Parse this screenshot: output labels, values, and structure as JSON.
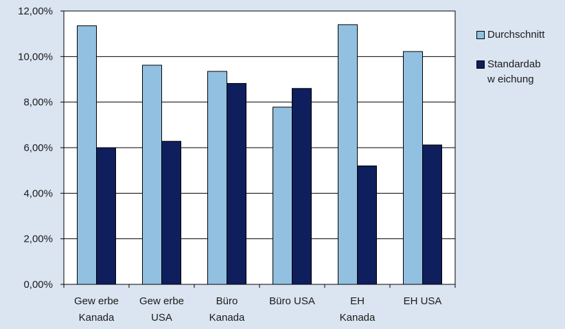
{
  "chart_data": {
    "type": "bar",
    "categories": [
      [
        "Gew erbe",
        "Kanada"
      ],
      [
        "Gew erbe",
        "USA"
      ],
      [
        "Büro",
        "Kanada"
      ],
      [
        "Büro USA"
      ],
      [
        "EH",
        "Kanada"
      ],
      [
        "EH USA"
      ]
    ],
    "series": [
      {
        "name": "Durchschnitt",
        "values": [
          11.35,
          9.62,
          9.35,
          7.78,
          11.4,
          10.22
        ],
        "color": "#92c0e0"
      },
      {
        "name": "Standardab w eichung",
        "name_lines": [
          "Standardab",
          "w eichung"
        ],
        "values": [
          6.0,
          6.28,
          8.82,
          8.6,
          5.2,
          6.12
        ],
        "color": "#0f1e5c"
      }
    ],
    "yticks": [
      "0,00%",
      "2,00%",
      "4,00%",
      "6,00%",
      "8,00%",
      "10,00%",
      "12,00%"
    ],
    "ylim": [
      0,
      12
    ],
    "grid": true,
    "legend": "right",
    "plot_background": "#ffffff",
    "page_background": "#dbe5f1"
  }
}
